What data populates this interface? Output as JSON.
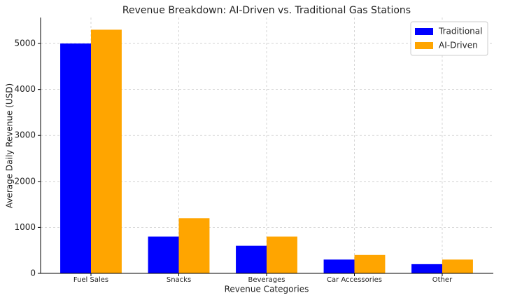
{
  "chart_data": {
    "type": "bar",
    "title": "Revenue Breakdown: AI-Driven vs. Traditional Gas Stations",
    "x_label": "Revenue Categories",
    "y_label": "Average Daily Revenue (USD)",
    "categories": [
      "Fuel Sales",
      "Snacks",
      "Beverages",
      "Car Accessories",
      "Other"
    ],
    "series": [
      {
        "name": "Traditional",
        "color": "#0000ff",
        "values": [
          5000,
          800,
          600,
          300,
          200
        ]
      },
      {
        "name": "AI-Driven",
        "color": "#ffa500",
        "values": [
          5300,
          1200,
          800,
          400,
          300
        ]
      }
    ],
    "ylim": [
      0,
      5565
    ],
    "yticks": [
      0,
      1000,
      2000,
      3000,
      4000,
      5000
    ],
    "grid": true,
    "legend": "upper right"
  }
}
